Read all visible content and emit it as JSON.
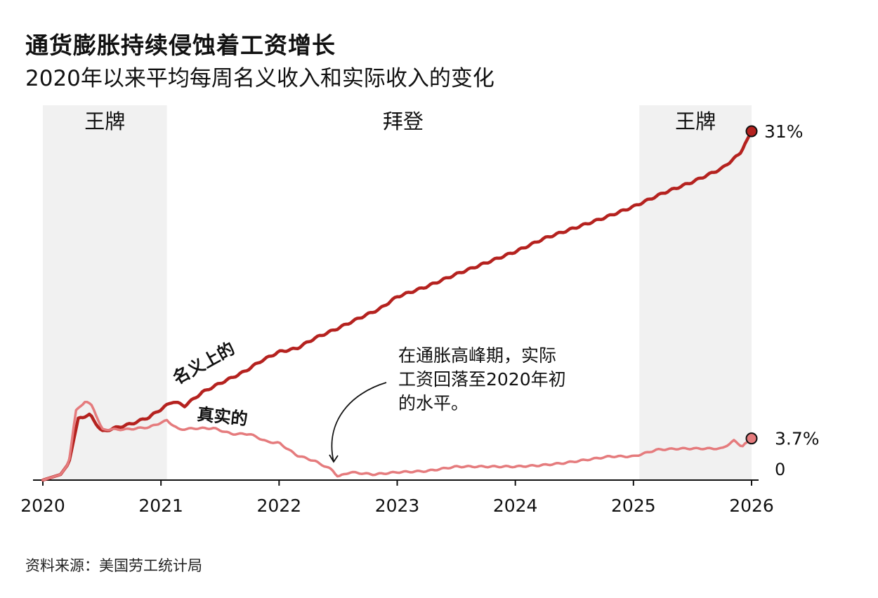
{
  "header": {
    "title": "通货膨胀持续侵蚀着工资增长",
    "subtitle": "2020年以来平均每周名义收入和实际收入的变化"
  },
  "footer": {
    "source": "资料来源：美国劳工统计局"
  },
  "colors": {
    "nominal": "#b5221f",
    "real": "#e57b7d",
    "shade": "#f1f1f1",
    "axis": "#111111"
  },
  "chart_data": {
    "type": "line",
    "title": "通货膨胀持续侵蚀着工资增长",
    "subtitle": "2020年以来平均每周名义收入和实际收入的变化",
    "x_unit": "year",
    "xlim": [
      2020,
      2026
    ],
    "ylim": [
      0,
      31
    ],
    "x_ticks": [
      2020,
      2021,
      2022,
      2023,
      2024,
      2025,
      2026
    ],
    "x_tick_labels": [
      "2020",
      "2021",
      "2022",
      "2023",
      "2024",
      "2025",
      "2026"
    ],
    "y_zero_label": "0",
    "periods": [
      {
        "label": "王牌",
        "start": 2020.0,
        "end": 2021.05,
        "shaded": true
      },
      {
        "label": "拜登",
        "start": 2021.05,
        "end": 2025.05,
        "shaded": false
      },
      {
        "label": "王牌",
        "start": 2025.05,
        "end": 2026.0,
        "shaded": true
      }
    ],
    "series": [
      {
        "name": "名义上的",
        "end_label": "31%",
        "points": [
          [
            2020.0,
            0
          ],
          [
            2020.15,
            0.5
          ],
          [
            2020.22,
            1.5
          ],
          [
            2020.3,
            5.5
          ],
          [
            2020.4,
            5.8
          ],
          [
            2020.5,
            4.3
          ],
          [
            2020.6,
            4.6
          ],
          [
            2020.75,
            5.0
          ],
          [
            2020.9,
            5.6
          ],
          [
            2021.0,
            6.3
          ],
          [
            2021.1,
            7.0
          ],
          [
            2021.2,
            6.6
          ],
          [
            2021.35,
            7.8
          ],
          [
            2021.5,
            8.6
          ],
          [
            2021.7,
            9.6
          ],
          [
            2021.85,
            10.6
          ],
          [
            2022.0,
            11.4
          ],
          [
            2022.15,
            11.7
          ],
          [
            2022.3,
            12.6
          ],
          [
            2022.5,
            13.5
          ],
          [
            2022.7,
            14.5
          ],
          [
            2022.85,
            15.2
          ],
          [
            2023.0,
            16.3
          ],
          [
            2023.25,
            17.2
          ],
          [
            2023.5,
            18.3
          ],
          [
            2023.75,
            19.3
          ],
          [
            2024.0,
            20.3
          ],
          [
            2024.25,
            21.5
          ],
          [
            2024.5,
            22.4
          ],
          [
            2024.75,
            23.3
          ],
          [
            2025.0,
            24.3
          ],
          [
            2025.25,
            25.5
          ],
          [
            2025.5,
            26.5
          ],
          [
            2025.75,
            27.7
          ],
          [
            2025.9,
            29.0
          ],
          [
            2026.0,
            31.0
          ]
        ]
      },
      {
        "name": "真实的",
        "end_label": "3.7%",
        "points": [
          [
            2020.0,
            0
          ],
          [
            2020.15,
            0.5
          ],
          [
            2020.22,
            1.5
          ],
          [
            2020.28,
            6.2
          ],
          [
            2020.36,
            7.0
          ],
          [
            2020.42,
            6.6
          ],
          [
            2020.5,
            4.5
          ],
          [
            2020.7,
            4.5
          ],
          [
            2020.9,
            4.7
          ],
          [
            2021.05,
            5.3
          ],
          [
            2021.15,
            4.5
          ],
          [
            2021.3,
            4.6
          ],
          [
            2021.45,
            4.6
          ],
          [
            2021.6,
            4.1
          ],
          [
            2021.75,
            4.1
          ],
          [
            2021.9,
            3.4
          ],
          [
            2022.0,
            3.3
          ],
          [
            2022.15,
            2.2
          ],
          [
            2022.3,
            1.7
          ],
          [
            2022.45,
            0.9
          ],
          [
            2022.5,
            0.3
          ],
          [
            2022.6,
            0.7
          ],
          [
            2022.8,
            0.5
          ],
          [
            2023.0,
            0.7
          ],
          [
            2023.25,
            0.8
          ],
          [
            2023.5,
            1.2
          ],
          [
            2023.75,
            1.2
          ],
          [
            2024.0,
            1.2
          ],
          [
            2024.2,
            1.3
          ],
          [
            2024.4,
            1.5
          ],
          [
            2024.6,
            1.8
          ],
          [
            2024.8,
            2.1
          ],
          [
            2025.0,
            2.1
          ],
          [
            2025.2,
            2.7
          ],
          [
            2025.4,
            2.8
          ],
          [
            2025.6,
            2.8
          ],
          [
            2025.75,
            2.8
          ],
          [
            2025.85,
            3.5
          ],
          [
            2025.92,
            3.0
          ],
          [
            2026.0,
            3.7
          ]
        ]
      }
    ],
    "annotations": {
      "nominal_label": "名义上的",
      "real_label": "真实的",
      "callout_lines": [
        "在通胀高峰期，实际",
        "工资回落至2020年初",
        "的水平。"
      ],
      "callout_target": [
        2022.45,
        0.5
      ]
    }
  }
}
